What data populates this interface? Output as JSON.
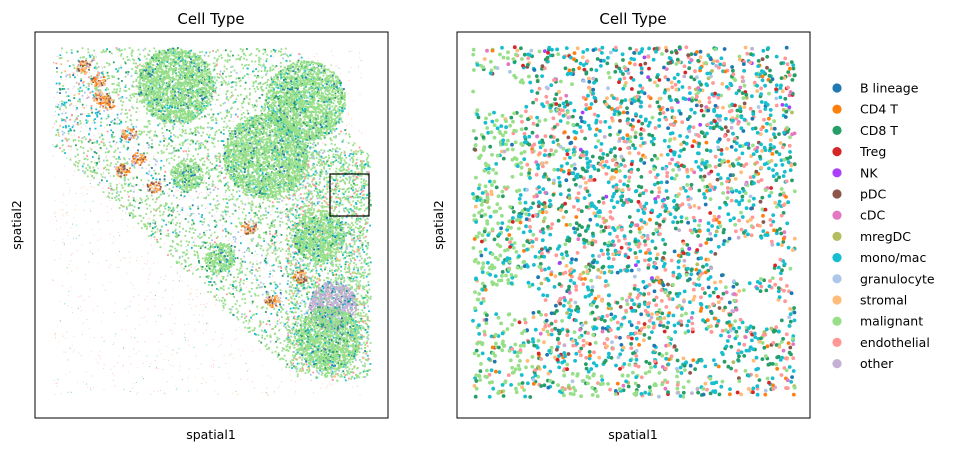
{
  "chart_data": [
    {
      "type": "scatter",
      "title": "Cell Type",
      "xlabel": "spatial1",
      "ylabel": "spatial2",
      "ticks": false,
      "inset_box": true,
      "legend": "none"
    },
    {
      "type": "scatter",
      "title": "Cell Type",
      "xlabel": "spatial1",
      "ylabel": "spatial2",
      "ticks": false,
      "legend": "right-outside",
      "categories": [
        {
          "name": "B lineage",
          "color": "#1f77b4"
        },
        {
          "name": "CD4 T",
          "color": "#ff7f0e"
        },
        {
          "name": "CD8 T",
          "color": "#279e68"
        },
        {
          "name": "Treg",
          "color": "#d62728"
        },
        {
          "name": "NK",
          "color": "#aa40fc"
        },
        {
          "name": "pDC",
          "color": "#8c564b"
        },
        {
          "name": "cDC",
          "color": "#e377c2"
        },
        {
          "name": "mregDC",
          "color": "#b5bd61"
        },
        {
          "name": "mono/mac",
          "color": "#17becf"
        },
        {
          "name": "granulocyte",
          "color": "#aec7e8"
        },
        {
          "name": "stromal",
          "color": "#ffbb78"
        },
        {
          "name": "malignant",
          "color": "#98df8a"
        },
        {
          "name": "endothelial",
          "color": "#ff9896"
        },
        {
          "name": "other",
          "color": "#c5b0d5"
        }
      ]
    }
  ]
}
